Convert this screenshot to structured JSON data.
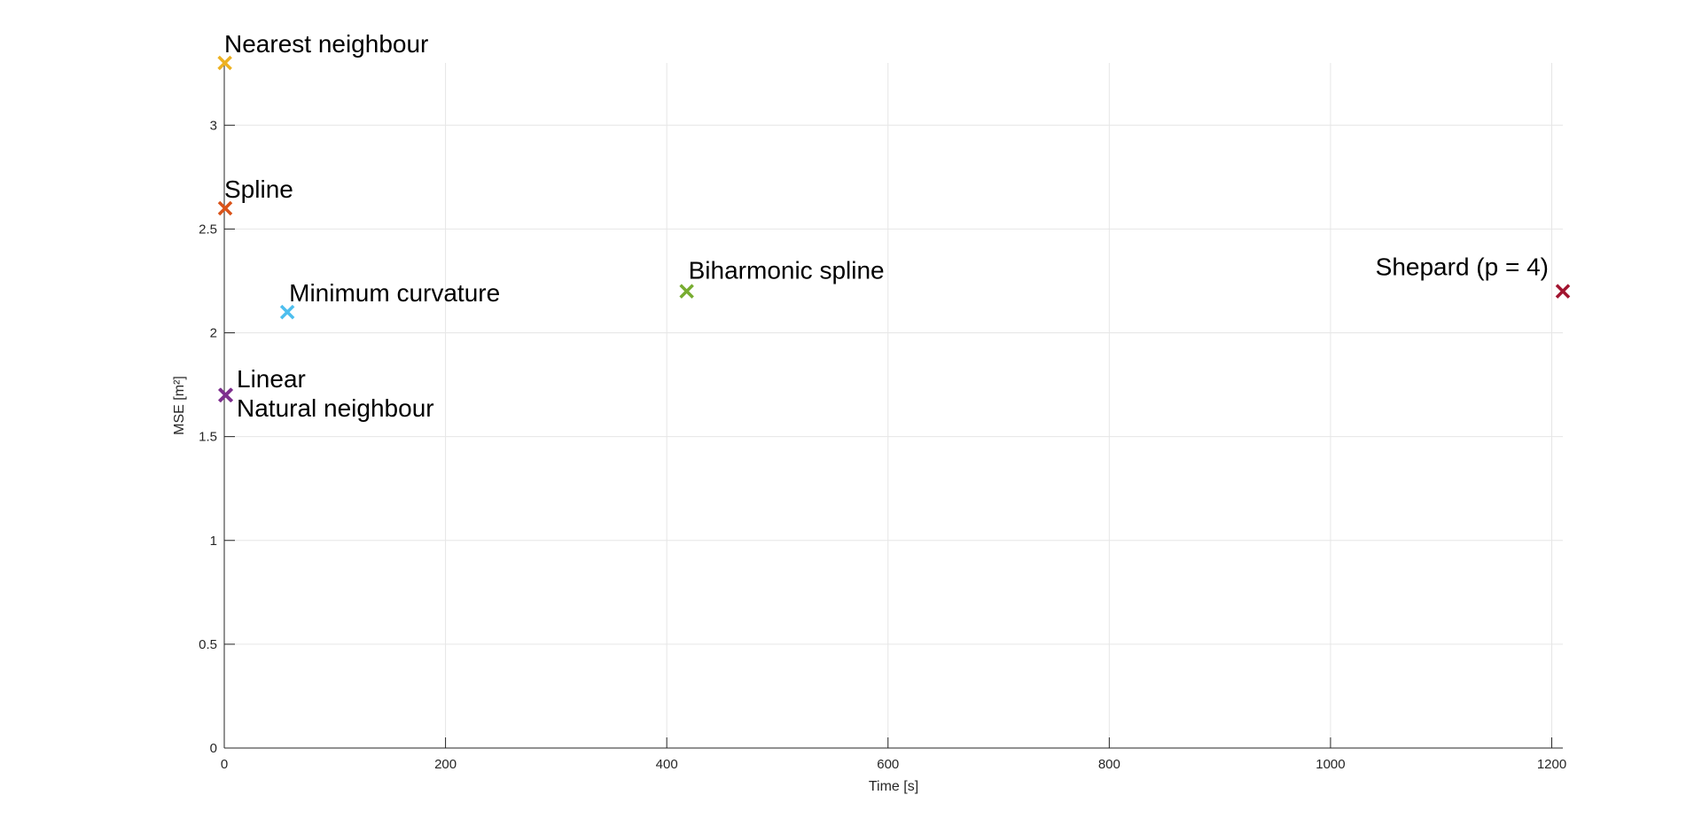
{
  "chart_data": {
    "type": "scatter",
    "title": "",
    "xlabel": "Time [s]",
    "ylabel": "MSE [m²]",
    "xlim": [
      0,
      1210
    ],
    "ylim": [
      0,
      3.3
    ],
    "x_ticks": [
      0,
      200,
      400,
      600,
      800,
      1000,
      1200
    ],
    "y_ticks": [
      0,
      0.5,
      1,
      1.5,
      2,
      2.5,
      3
    ],
    "x_tick_labels": [
      "0",
      "200",
      "400",
      "600",
      "800",
      "1000",
      "1200"
    ],
    "y_tick_labels": [
      "0",
      "0.5",
      "1",
      "1.5",
      "2",
      "2.5",
      "3"
    ],
    "grid": true,
    "marker": "x",
    "points": [
      {
        "label": "Nearest neighbour",
        "x": 0.5,
        "y": 3.3,
        "color": "#EDB120"
      },
      {
        "label": "Spline",
        "x": 0.8,
        "y": 2.6,
        "color": "#D95319"
      },
      {
        "label": "Minimum curvature",
        "x": 57,
        "y": 2.1,
        "color": "#4DBEEE"
      },
      {
        "label": "Biharmonic spline",
        "x": 418,
        "y": 2.2,
        "color": "#77AC30"
      },
      {
        "label": "Shepard (p = 4)",
        "x": 1210,
        "y": 2.2,
        "color": "#A2142F"
      },
      {
        "label": "Linear",
        "x": 1.0,
        "y": 1.7,
        "color": "#7E2F8E"
      },
      {
        "label": "Natural neighbour",
        "x": 1.5,
        "y": 1.7,
        "color": "#7E2F8E"
      }
    ]
  }
}
